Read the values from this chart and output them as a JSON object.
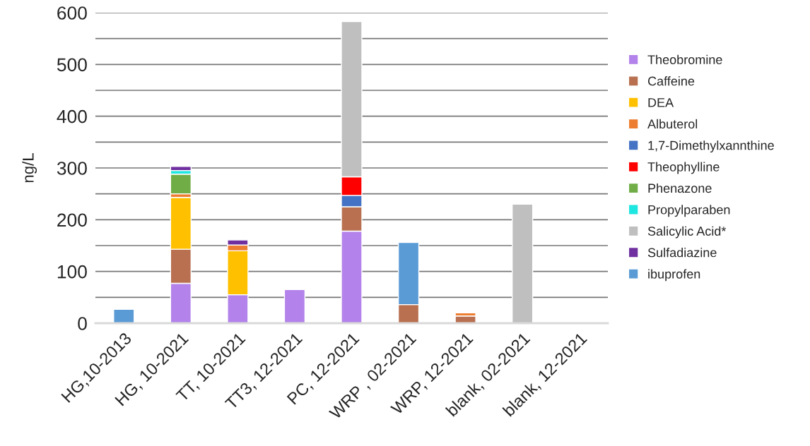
{
  "chart_data": {
    "type": "bar",
    "stacked": true,
    "ylabel": "ng/L",
    "categories": [
      "HG,10-2013",
      "HG, 10-2021",
      "TT, 10-2021",
      "TT3, 12-2021",
      "PC, 12-2021",
      "WRP , 02-2021",
      "WRP, 12-2021",
      "blank, 02-2021",
      "blank, 12-2021"
    ],
    "series": [
      {
        "name": "Theobromine",
        "color": "#b382ea",
        "values": [
          null,
          77,
          55,
          65,
          178,
          null,
          null,
          null,
          null
        ]
      },
      {
        "name": "Caffeine",
        "color": "#b87050",
        "values": [
          null,
          66,
          null,
          null,
          47,
          36,
          14,
          null,
          null
        ]
      },
      {
        "name": "DEA",
        "color": "#ffc000",
        "values": [
          null,
          100,
          85,
          null,
          null,
          null,
          null,
          null,
          null
        ]
      },
      {
        "name": "Albuterol",
        "color": "#ed7d31",
        "values": [
          null,
          7,
          11,
          null,
          null,
          null,
          6,
          null,
          null
        ]
      },
      {
        "name": "1,7-Dimethylxannthine",
        "color": "#4472c4",
        "values": [
          null,
          null,
          null,
          null,
          22,
          null,
          null,
          null,
          null
        ]
      },
      {
        "name": "Theophylline",
        "color": "#ff0000",
        "values": [
          null,
          null,
          null,
          null,
          36,
          null,
          null,
          null,
          null
        ]
      },
      {
        "name": "Phenazone",
        "color": "#70ad47",
        "values": [
          null,
          38,
          null,
          null,
          null,
          null,
          null,
          null,
          null
        ]
      },
      {
        "name": "Propylparaben",
        "color": "#1ee6e0",
        "values": [
          null,
          7,
          null,
          null,
          null,
          null,
          null,
          null,
          null
        ]
      },
      {
        "name": "Salicylic Acid*",
        "color": "#bfbfbf",
        "values": [
          null,
          null,
          null,
          null,
          300,
          null,
          null,
          230,
          null
        ]
      },
      {
        "name": "Sulfadiazine",
        "color": "#7030a0",
        "values": [
          null,
          8,
          10,
          null,
          null,
          null,
          null,
          null,
          null
        ]
      },
      {
        "name": "ibuprofen",
        "color": "#5b9bd5",
        "values": [
          27,
          null,
          null,
          null,
          null,
          120,
          null,
          null,
          null
        ]
      }
    ],
    "ylim": [
      0,
      600
    ],
    "yticks": [
      0,
      {
        "value": 50,
        "label": null
      },
      100,
      {
        "value": 150,
        "label": null
      },
      200,
      {
        "value": 250,
        "label": null
      },
      300,
      {
        "value": 350,
        "label": null
      },
      400,
      {
        "value": 450,
        "label": null
      },
      500,
      {
        "value": 550,
        "label": null
      },
      600
    ],
    "grid": "y",
    "legend": "right"
  }
}
